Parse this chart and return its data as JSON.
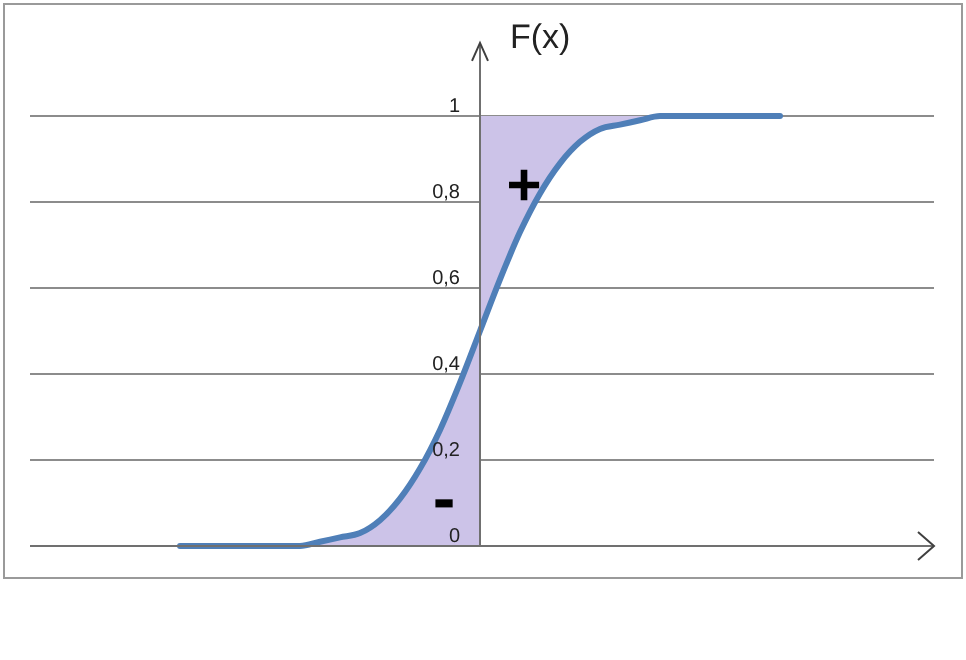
{
  "chart_data": {
    "type": "line",
    "ylabel": "F(x)",
    "categories": [
      null,
      null,
      null,
      null,
      null,
      null,
      null,
      null,
      null,
      null,
      null,
      null,
      null,
      null,
      null,
      null,
      null,
      null,
      null,
      null,
      null,
      null,
      null,
      null,
      null,
      null,
      null,
      null,
      null,
      null,
      null
    ],
    "series": [
      {
        "type": "area",
        "color": "#ccc3e8",
        "values": [
          0,
          0,
          0,
          0,
          0,
          0,
          0,
          0.01,
          0.02,
          0.03,
          0.06,
          0.11,
          0.18,
          0.27,
          0.38,
          0.5,
          null,
          null,
          null,
          null,
          null,
          null,
          null,
          null,
          null,
          null,
          null,
          null,
          null,
          null,
          null
        ]
      },
      {
        "color": "#4f7fb8",
        "values": [
          0,
          0,
          0,
          0,
          0,
          0,
          0,
          0.01,
          0.02,
          0.03,
          0.06,
          0.11,
          0.18,
          0.27,
          0.38,
          0.5,
          0.62,
          0.73,
          0.82,
          0.89,
          0.94,
          0.97,
          0.98,
          0.99,
          1,
          1,
          1,
          1,
          1,
          1,
          1
        ],
        "lower": [
          null,
          null,
          null,
          null,
          null,
          null,
          null,
          null,
          null,
          null,
          null,
          null,
          null,
          null,
          null,
          0.5,
          0.62,
          0.73,
          0.82,
          0.89,
          0.94,
          0.97,
          0.98,
          0.99,
          1,
          1,
          1,
          1,
          1,
          1,
          1
        ],
        "upper": [
          null,
          null,
          null,
          null,
          null,
          null,
          null,
          null,
          null,
          null,
          null,
          null,
          null,
          null,
          null,
          1,
          1,
          1,
          1,
          1,
          1,
          1,
          1,
          1,
          1,
          1,
          1,
          1,
          1,
          1,
          1
        ]
      }
    ],
    "ylim": [
      0,
      1.17
    ],
    "yticks": [
      0,
      {
        "value": 0.2,
        "label": "0,2"
      },
      {
        "value": 0.4,
        "label": "0,4"
      },
      {
        "value": 0.6,
        "label": "0,6"
      },
      {
        "value": 0.8,
        "label": "0,8"
      },
      1
    ],
    "grid": "y",
    "tick_labels": "y",
    "marker": "none",
    "line_style": "solid",
    "annotations": [
      "+",
      "-"
    ]
  }
}
